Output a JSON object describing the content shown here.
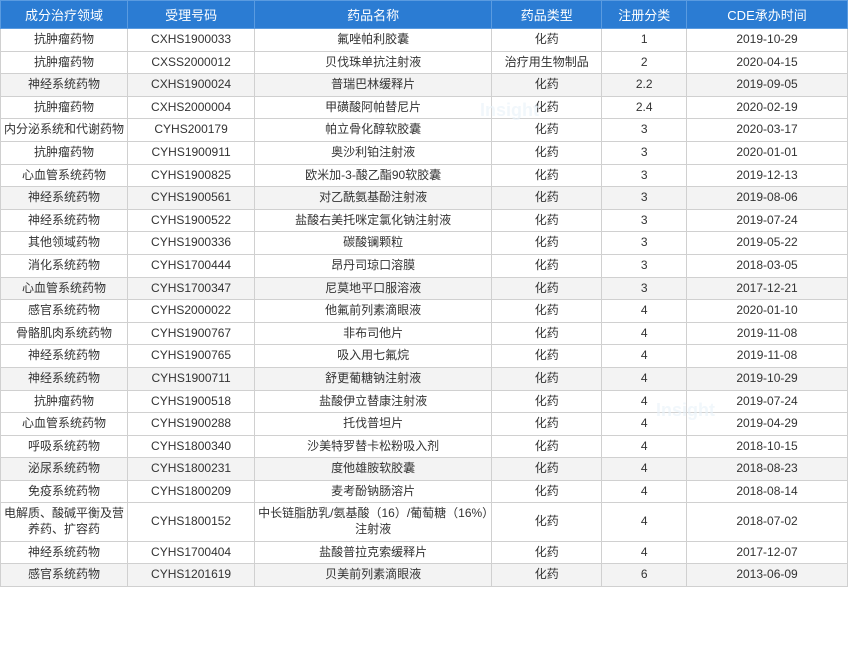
{
  "columns": [
    {
      "key": "domain",
      "label": "成分治疗领域",
      "width": "15%"
    },
    {
      "key": "accept",
      "label": "受理号码",
      "width": "15%"
    },
    {
      "key": "drug",
      "label": "药品名称",
      "width": "28%"
    },
    {
      "key": "type",
      "label": "药品类型",
      "width": "13%"
    },
    {
      "key": "reg",
      "label": "注册分类",
      "width": "10%"
    },
    {
      "key": "date",
      "label": "CDE承办时间",
      "width": "19%"
    }
  ],
  "rows": [
    {
      "domain": "抗肿瘤药物",
      "accept": "CXHS1900033",
      "drug": "氟唑帕利胶囊",
      "type": "化药",
      "reg": "1",
      "date": "2019-10-29"
    },
    {
      "domain": "抗肿瘤药物",
      "accept": "CXSS2000012",
      "drug": "贝伐珠单抗注射液",
      "type": "治疗用生物制品",
      "reg": "2",
      "date": "2020-04-15"
    },
    {
      "domain": "神经系统药物",
      "accept": "CXHS1900024",
      "drug": "普瑞巴林缓释片",
      "type": "化药",
      "reg": "2.2",
      "date": "2019-09-05"
    },
    {
      "domain": "抗肿瘤药物",
      "accept": "CXHS2000004",
      "drug": "甲磺酸阿帕替尼片",
      "type": "化药",
      "reg": "2.4",
      "date": "2020-02-19"
    },
    {
      "domain": "内分泌系统和代谢药物",
      "accept": "CYHS200179",
      "drug": "帕立骨化醇软胶囊",
      "type": "化药",
      "reg": "3",
      "date": "2020-03-17"
    },
    {
      "domain": "抗肿瘤药物",
      "accept": "CYHS1900911",
      "drug": "奥沙利铂注射液",
      "type": "化药",
      "reg": "3",
      "date": "2020-01-01"
    },
    {
      "domain": "心血管系统药物",
      "accept": "CYHS1900825",
      "drug": "欧米加-3-酸乙酯90软胶囊",
      "type": "化药",
      "reg": "3",
      "date": "2019-12-13"
    },
    {
      "domain": "神经系统药物",
      "accept": "CYHS1900561",
      "drug": "对乙酰氨基酚注射液",
      "type": "化药",
      "reg": "3",
      "date": "2019-08-06"
    },
    {
      "domain": "神经系统药物",
      "accept": "CYHS1900522",
      "drug": "盐酸右美托咪定氯化钠注射液",
      "type": "化药",
      "reg": "3",
      "date": "2019-07-24"
    },
    {
      "domain": "其他领域药物",
      "accept": "CYHS1900336",
      "drug": "碳酸镧颗粒",
      "type": "化药",
      "reg": "3",
      "date": "2019-05-22"
    },
    {
      "domain": "消化系统药物",
      "accept": "CYHS1700444",
      "drug": "昂丹司琼口溶膜",
      "type": "化药",
      "reg": "3",
      "date": "2018-03-05"
    },
    {
      "domain": "心血管系统药物",
      "accept": "CYHS1700347",
      "drug": "尼莫地平口服溶液",
      "type": "化药",
      "reg": "3",
      "date": "2017-12-21"
    },
    {
      "domain": "感官系统药物",
      "accept": "CYHS2000022",
      "drug": "他氟前列素滴眼液",
      "type": "化药",
      "reg": "4",
      "date": "2020-01-10"
    },
    {
      "domain": "骨骼肌肉系统药物",
      "accept": "CYHS1900767",
      "drug": "非布司他片",
      "type": "化药",
      "reg": "4",
      "date": "2019-11-08"
    },
    {
      "domain": "神经系统药物",
      "accept": "CYHS1900765",
      "drug": "吸入用七氟烷",
      "type": "化药",
      "reg": "4",
      "date": "2019-11-08"
    },
    {
      "domain": "神经系统药物",
      "accept": "CYHS1900711",
      "drug": "舒更葡糖钠注射液",
      "type": "化药",
      "reg": "4",
      "date": "2019-10-29"
    },
    {
      "domain": "抗肿瘤药物",
      "accept": "CYHS1900518",
      "drug": "盐酸伊立替康注射液",
      "type": "化药",
      "reg": "4",
      "date": "2019-07-24"
    },
    {
      "domain": "心血管系统药物",
      "accept": "CYHS1900288",
      "drug": "托伐普坦片",
      "type": "化药",
      "reg": "4",
      "date": "2019-04-29"
    },
    {
      "domain": "呼吸系统药物",
      "accept": "CYHS1800340",
      "drug": "沙美特罗替卡松粉吸入剂",
      "type": "化药",
      "reg": "4",
      "date": "2018-10-15"
    },
    {
      "domain": "泌尿系统药物",
      "accept": "CYHS1800231",
      "drug": "度他雄胺软胶囊",
      "type": "化药",
      "reg": "4",
      "date": "2018-08-23"
    },
    {
      "domain": "免疫系统药物",
      "accept": "CYHS1800209",
      "drug": "麦考酚钠肠溶片",
      "type": "化药",
      "reg": "4",
      "date": "2018-08-14"
    },
    {
      "domain": "电解质、酸碱平衡及营养药、扩容药",
      "accept": "CYHS1800152",
      "drug": "中长链脂肪乳/氨基酸（16）/葡萄糖（16%）注射液",
      "type": "化药",
      "reg": "4",
      "date": "2018-07-02"
    },
    {
      "domain": "神经系统药物",
      "accept": "CYHS1700404",
      "drug": "盐酸普拉克索缓释片",
      "type": "化药",
      "reg": "4",
      "date": "2017-12-07"
    },
    {
      "domain": "感官系统药物",
      "accept": "CYHS1201619",
      "drug": "贝美前列素滴眼液",
      "type": "化药",
      "reg": "6",
      "date": "2013-06-09"
    }
  ],
  "watermark": "Insight"
}
